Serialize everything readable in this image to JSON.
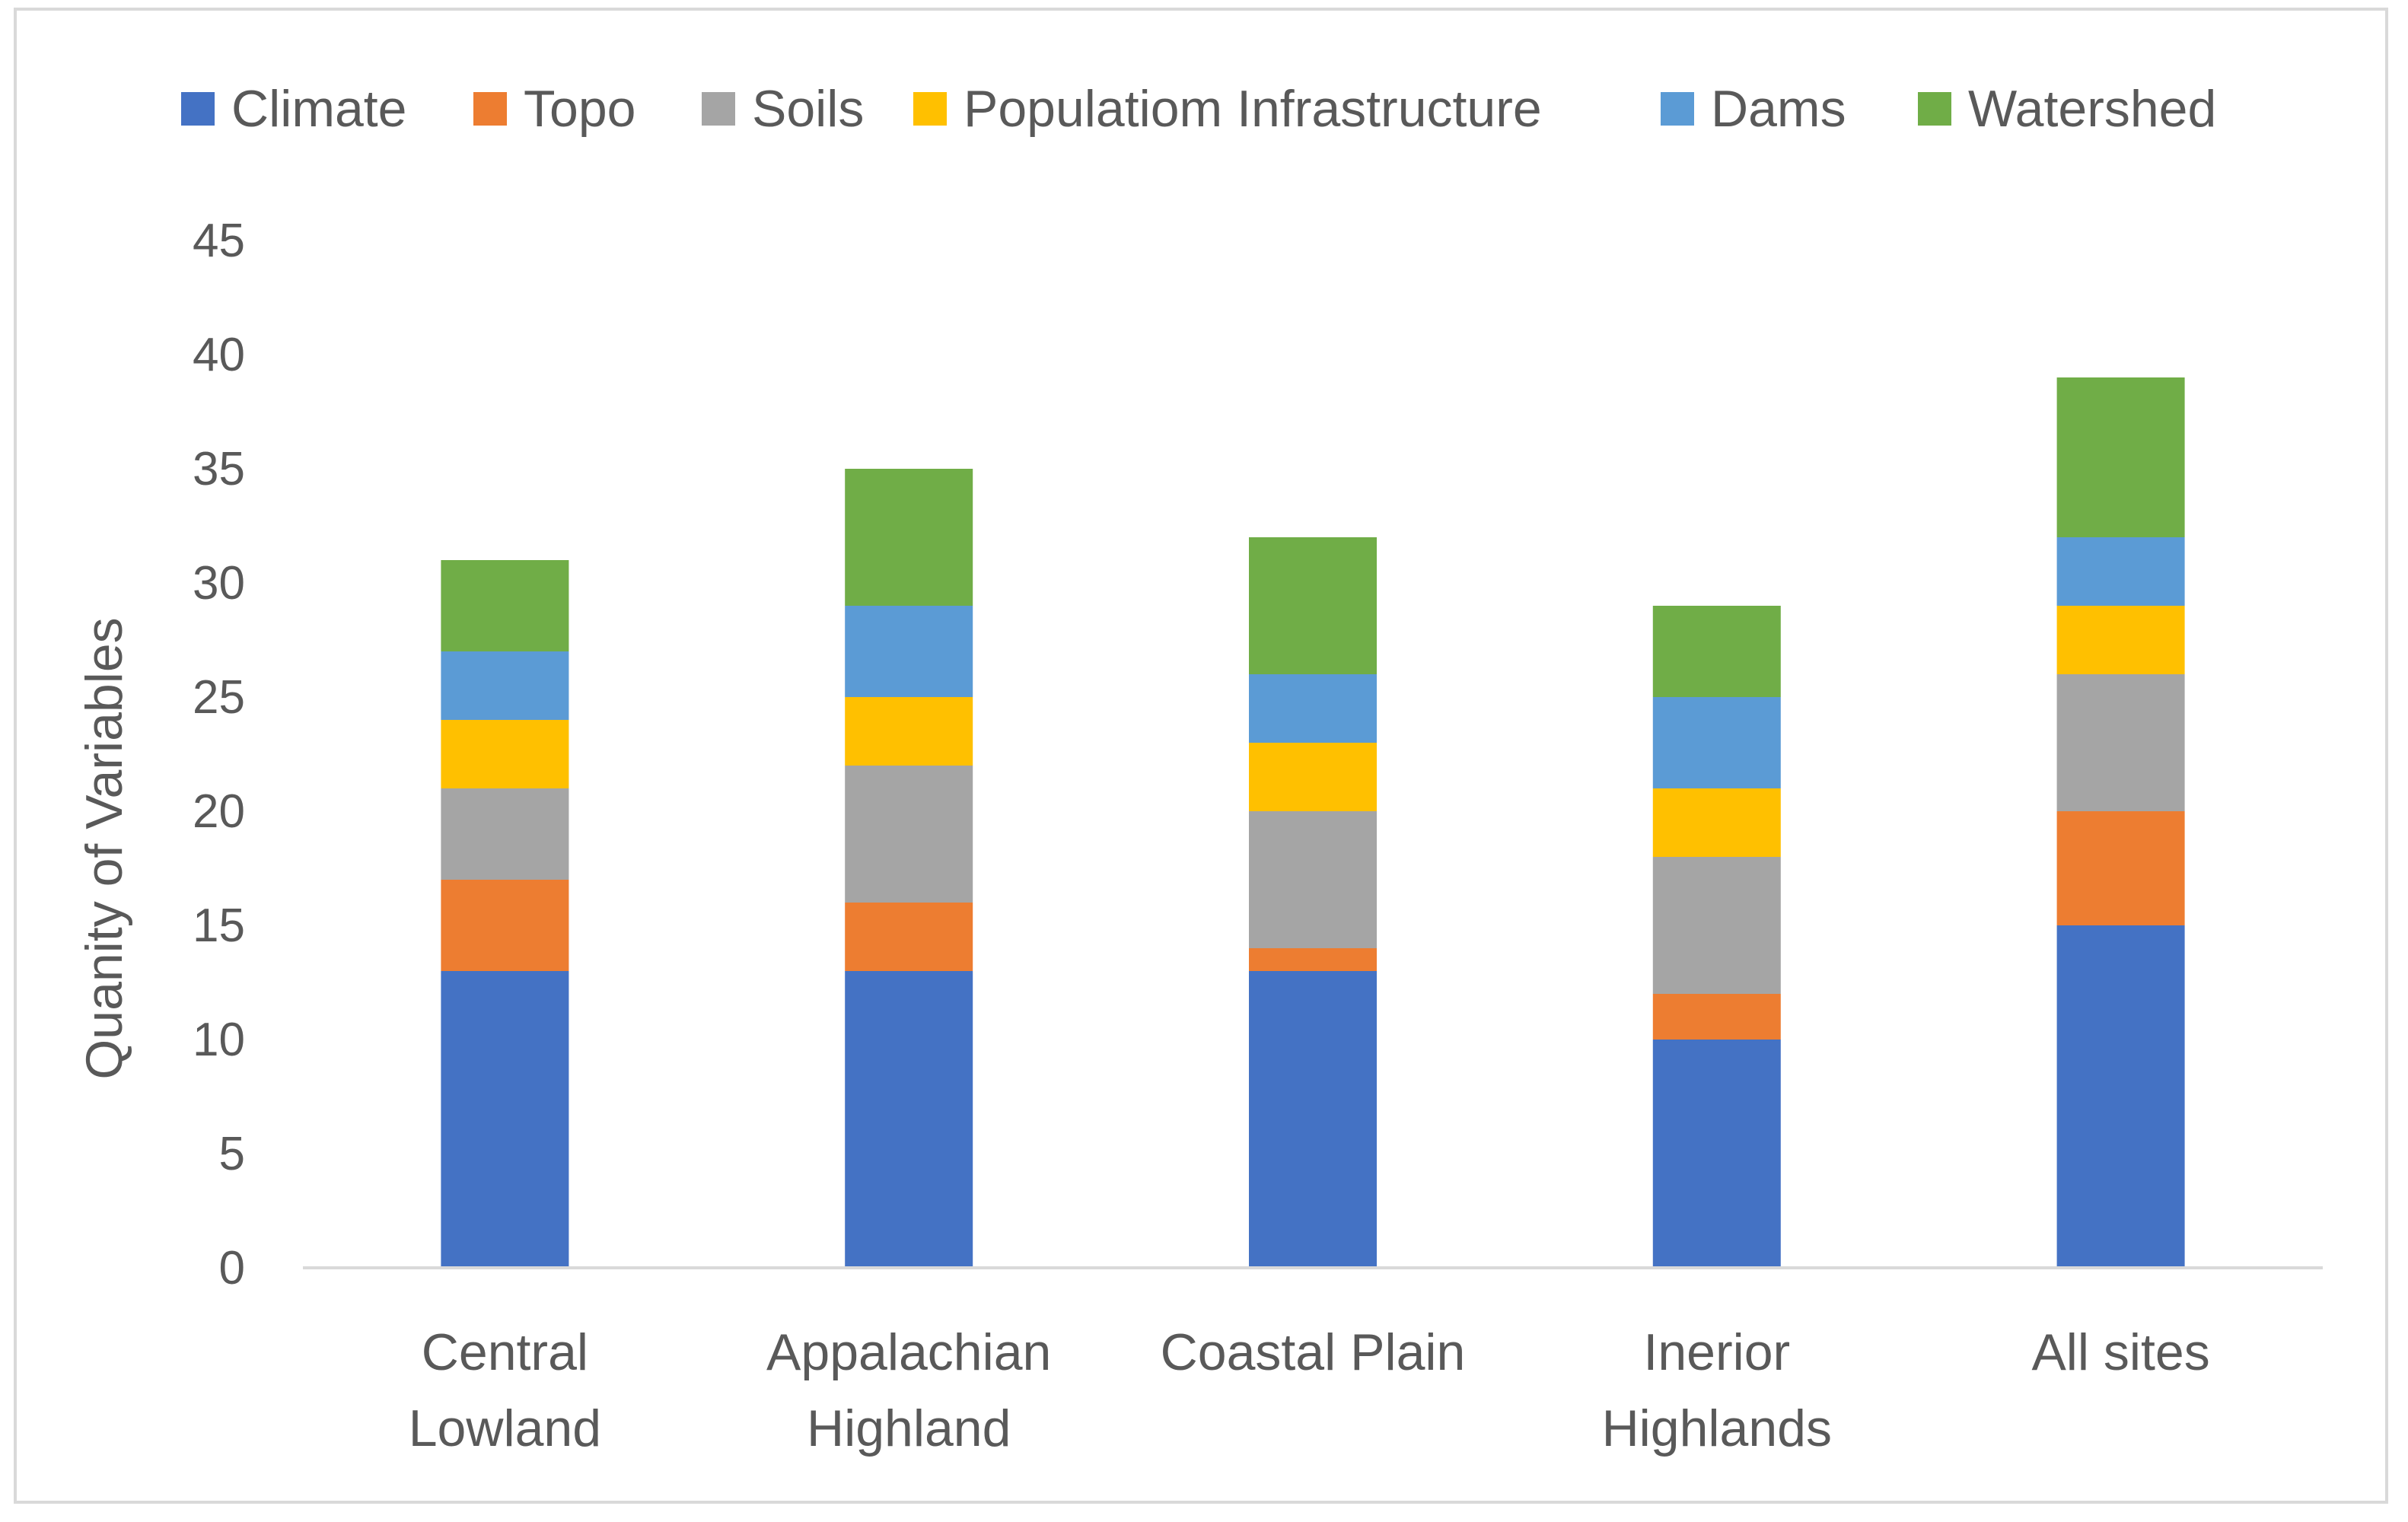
{
  "chart_data": {
    "type": "bar",
    "stacked": true,
    "title": "",
    "xlabel": "",
    "ylabel": "Quanity of Variables",
    "ylim": [
      0,
      45
    ],
    "yticks": [
      0,
      5,
      10,
      15,
      20,
      25,
      30,
      35,
      40,
      45
    ],
    "grid": false,
    "legend_position": "top",
    "categories": [
      [
        "Central",
        "Lowland"
      ],
      [
        "Appalachian",
        "Highland"
      ],
      [
        "Coastal Plain"
      ],
      [
        "Inerior",
        "Highlands"
      ],
      [
        "All sites"
      ]
    ],
    "series": [
      {
        "name": "Climate",
        "color": "#4472c4",
        "values": [
          13,
          13,
          13,
          10,
          15
        ]
      },
      {
        "name": "Topo",
        "color": "#ed7d31",
        "values": [
          4,
          3,
          1,
          2,
          5
        ]
      },
      {
        "name": "Soils",
        "color": "#a5a5a5",
        "values": [
          4,
          6,
          6,
          6,
          6
        ]
      },
      {
        "name": "Populatiom Infrastructure",
        "color": "#ffc000",
        "values": [
          3,
          3,
          3,
          3,
          3
        ]
      },
      {
        "name": "Dams",
        "color": "#5b9bd5",
        "values": [
          3,
          4,
          3,
          4,
          3
        ]
      },
      {
        "name": "Watershed",
        "color": "#70ad47",
        "values": [
          4,
          6,
          6,
          4,
          7
        ]
      }
    ]
  }
}
